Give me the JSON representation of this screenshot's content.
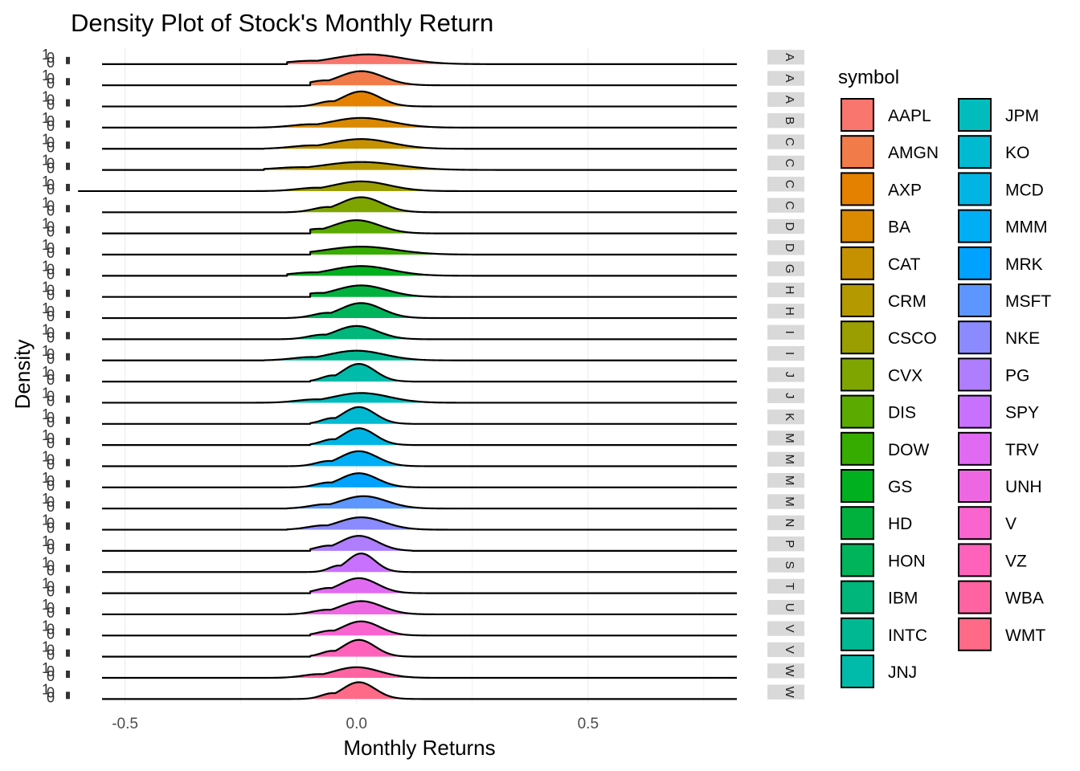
{
  "chart_data": {
    "type": "area",
    "title": "Density Plot of Stock's Monthly Return",
    "xlabel": "Monthly Returns",
    "ylabel": "Density",
    "xlim": [
      -0.6,
      0.87
    ],
    "x_ticks": [
      -0.5,
      0.0,
      0.5
    ],
    "x_tick_labels": [
      "-0.5",
      "0.0",
      "0.5"
    ],
    "y_tick_labels_per_panel": [
      "1",
      "0"
    ],
    "grid": true,
    "legend_title": "symbol",
    "legend_position": "right",
    "facet_strip_labels": [
      "A",
      "A",
      "A",
      "B",
      "C",
      "C",
      "C",
      "C",
      "D",
      "D",
      "G",
      "H",
      "H",
      "I",
      "I",
      "J",
      "J",
      "K",
      "M",
      "M",
      "M",
      "M",
      "N",
      "P",
      "S",
      "T",
      "U",
      "V",
      "V",
      "W",
      "W"
    ],
    "series": [
      {
        "name": "AAPL",
        "color": "#F8766D",
        "mean": 0.025,
        "sd": 0.075,
        "peak": 0.55,
        "xmin": -0.15,
        "xmax": 0.28
      },
      {
        "name": "AMGN",
        "color": "#F17B49",
        "mean": 0.01,
        "sd": 0.048,
        "peak": 0.8,
        "xmin": -0.1,
        "xmax": 0.2
      },
      {
        "name": "AXP",
        "color": "#E48100",
        "mean": 0.01,
        "sd": 0.04,
        "peak": 0.85,
        "xmin": -0.28,
        "xmax": 0.35
      },
      {
        "name": "BA",
        "color": "#D98A00",
        "mean": 0.01,
        "sd": 0.065,
        "peak": 0.55,
        "xmin": -0.45,
        "xmax": 0.45
      },
      {
        "name": "CAT",
        "color": "#C59100",
        "mean": 0.01,
        "sd": 0.065,
        "peak": 0.55,
        "xmin": -0.2,
        "xmax": 0.25
      },
      {
        "name": "CRM",
        "color": "#B49900",
        "mean": 0.01,
        "sd": 0.08,
        "peak": 0.45,
        "xmin": -0.2,
        "xmax": 0.45
      },
      {
        "name": "CSCO",
        "color": "#9A9E00",
        "mean": 0.01,
        "sd": 0.06,
        "peak": 0.55,
        "xmin": -0.6,
        "xmax": 0.35
      },
      {
        "name": "CVX",
        "color": "#7FA600",
        "mean": 0.01,
        "sd": 0.045,
        "peak": 0.85,
        "xmin": -0.15,
        "xmax": 0.2
      },
      {
        "name": "DIS",
        "color": "#5AAA00",
        "mean": 0.0,
        "sd": 0.05,
        "peak": 0.75,
        "xmin": -0.1,
        "xmax": 0.25
      },
      {
        "name": "DOW",
        "color": "#37AC00",
        "mean": 0.01,
        "sd": 0.075,
        "peak": 0.45,
        "xmin": -0.1,
        "xmax": 0.25
      },
      {
        "name": "GS",
        "color": "#00B01F",
        "mean": 0.01,
        "sd": 0.065,
        "peak": 0.55,
        "xmin": -0.15,
        "xmax": 0.25
      },
      {
        "name": "HD",
        "color": "#00B13E",
        "mean": 0.01,
        "sd": 0.055,
        "peak": 0.65,
        "xmin": -0.1,
        "xmax": 0.2
      },
      {
        "name": "HON",
        "color": "#00B45C",
        "mean": 0.01,
        "sd": 0.045,
        "peak": 0.85,
        "xmin": -0.15,
        "xmax": 0.2
      },
      {
        "name": "IBM",
        "color": "#00B67A",
        "mean": 0.0,
        "sd": 0.045,
        "peak": 0.75,
        "xmin": -0.25,
        "xmax": 0.2
      },
      {
        "name": "INTC",
        "color": "#00B993",
        "mean": 0.0,
        "sd": 0.06,
        "peak": 0.55,
        "xmin": -0.2,
        "xmax": 0.3
      },
      {
        "name": "JNJ",
        "color": "#00BBA9",
        "mean": 0.005,
        "sd": 0.035,
        "peak": 1.0,
        "xmin": -0.1,
        "xmax": 0.12
      },
      {
        "name": "JPM",
        "color": "#00BCBD",
        "mean": 0.01,
        "sd": 0.06,
        "peak": 0.55,
        "xmin": -0.25,
        "xmax": 0.35
      },
      {
        "name": "KO",
        "color": "#00BAD2",
        "mean": 0.005,
        "sd": 0.035,
        "peak": 0.95,
        "xmin": -0.1,
        "xmax": 0.12
      },
      {
        "name": "MCD",
        "color": "#00B5E4",
        "mean": 0.005,
        "sd": 0.035,
        "peak": 0.95,
        "xmin": -0.1,
        "xmax": 0.12
      },
      {
        "name": "MMM",
        "color": "#00AEF6",
        "mean": 0.005,
        "sd": 0.04,
        "peak": 0.85,
        "xmin": -0.15,
        "xmax": 0.15
      },
      {
        "name": "MRK",
        "color": "#00A2FF",
        "mean": 0.005,
        "sd": 0.04,
        "peak": 0.8,
        "xmin": -0.25,
        "xmax": 0.2
      },
      {
        "name": "MSFT",
        "color": "#5E96FF",
        "mean": 0.015,
        "sd": 0.05,
        "peak": 0.7,
        "xmin": -0.15,
        "xmax": 0.2
      },
      {
        "name": "NKE",
        "color": "#8B8AFF",
        "mean": 0.01,
        "sd": 0.05,
        "peak": 0.7,
        "xmin": -0.15,
        "xmax": 0.2
      },
      {
        "name": "PG",
        "color": "#AE7EFF",
        "mean": 0.005,
        "sd": 0.04,
        "peak": 0.85,
        "xmin": -0.1,
        "xmax": 0.12
      },
      {
        "name": "SPY",
        "color": "#C971FF",
        "mean": 0.01,
        "sd": 0.03,
        "peak": 1.05,
        "xmin": -0.12,
        "xmax": 0.12
      },
      {
        "name": "TRV",
        "color": "#E06AF2",
        "mean": 0.005,
        "sd": 0.04,
        "peak": 0.85,
        "xmin": -0.1,
        "xmax": 0.15
      },
      {
        "name": "UNH",
        "color": "#EE67E2",
        "mean": 0.01,
        "sd": 0.045,
        "peak": 0.75,
        "xmin": -0.15,
        "xmax": 0.2
      },
      {
        "name": "V",
        "color": "#FA64CF",
        "mean": 0.01,
        "sd": 0.04,
        "peak": 0.8,
        "xmin": -0.1,
        "xmax": 0.15
      },
      {
        "name": "VZ",
        "color": "#FF62BA",
        "mean": 0.005,
        "sd": 0.035,
        "peak": 0.95,
        "xmin": -0.1,
        "xmax": 0.12
      },
      {
        "name": "WBA",
        "color": "#FF63A1",
        "mean": 0.0,
        "sd": 0.05,
        "peak": 0.6,
        "xmin": -0.2,
        "xmax": 0.2
      },
      {
        "name": "WMT",
        "color": "#FF6A87",
        "mean": 0.005,
        "sd": 0.035,
        "peak": 0.95,
        "xmin": -0.15,
        "xmax": 0.15
      }
    ]
  }
}
